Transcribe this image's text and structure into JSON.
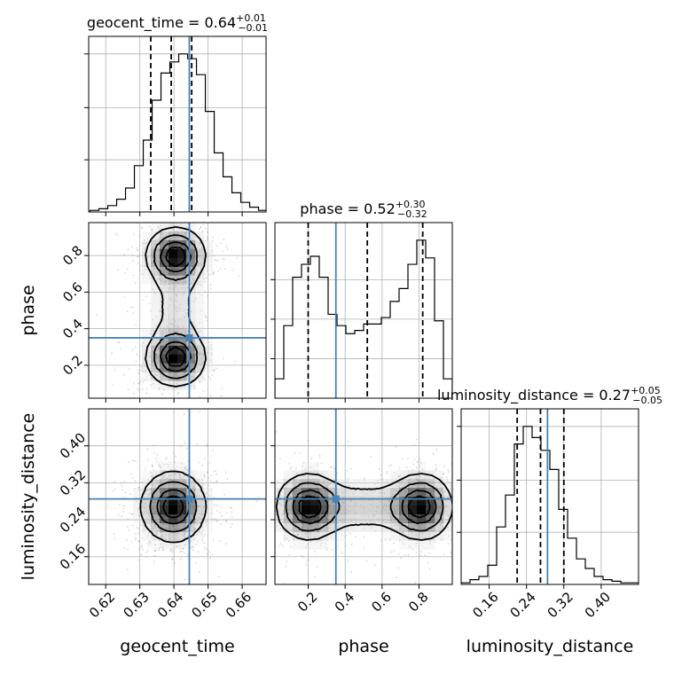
{
  "chart_data": {
    "type": "corner",
    "parameters": [
      "geocent_time",
      "phase",
      "luminosity_distance"
    ],
    "colors": {
      "truth": "#4682b4",
      "hist": "#000000",
      "density": "#000000"
    },
    "grid": true,
    "panels": [
      {
        "kind": "hist",
        "row": 0,
        "col": 0,
        "param": "geocent_time",
        "title": {
          "main": "geocent_time = 0.64",
          "sup": "+0.01",
          "sub": "−0.01"
        },
        "xlim": [
          0.615,
          0.667
        ],
        "yticks_frac": [
          0.33,
          0.66,
          1.0
        ],
        "bins": [
          0.6154,
          0.618,
          0.6206,
          0.6232,
          0.6258,
          0.6284,
          0.631,
          0.6336,
          0.6362,
          0.6388,
          0.6414,
          0.644,
          0.6466,
          0.6492,
          0.6518,
          0.6544,
          0.657,
          0.6596,
          0.6622,
          0.6648,
          0.6674
        ],
        "counts": [
          0.01,
          0.02,
          0.04,
          0.08,
          0.15,
          0.29,
          0.45,
          0.7,
          0.87,
          0.94,
          0.99,
          0.96,
          0.86,
          0.63,
          0.37,
          0.22,
          0.12,
          0.06,
          0.03,
          0.01
        ],
        "quantiles": [
          0.6332,
          0.6392,
          0.6452
        ],
        "truth": 0.6445
      },
      {
        "kind": "hist",
        "row": 1,
        "col": 1,
        "param": "phase",
        "title": {
          "main": "phase = 0.52",
          "sup": "+0.30",
          "sub": "−0.32"
        },
        "xlim": [
          0.02,
          0.98
        ],
        "yticks_frac": [
          0.25,
          0.5,
          0.75
        ],
        "bins": [
          0.02,
          0.068,
          0.116,
          0.164,
          0.212,
          0.26,
          0.308,
          0.356,
          0.404,
          0.452,
          0.5,
          0.548,
          0.596,
          0.644,
          0.692,
          0.74,
          0.788,
          0.836,
          0.884,
          0.932,
          0.98
        ],
        "counts": [
          0.12,
          0.45,
          0.75,
          0.83,
          0.88,
          0.75,
          0.52,
          0.45,
          0.4,
          0.42,
          0.46,
          0.46,
          0.5,
          0.6,
          0.68,
          0.83,
          0.98,
          0.87,
          0.48,
          0.12
        ],
        "quantiles": [
          0.2,
          0.52,
          0.82
        ],
        "truth": 0.35
      },
      {
        "kind": "hist",
        "row": 2,
        "col": 2,
        "param": "luminosity_distance",
        "title": {
          "main": "luminosity_distance = 0.27",
          "sup": "+0.05",
          "sub": "−0.05"
        },
        "xlim": [
          0.1,
          0.48
        ],
        "yticks_frac": [
          0.33,
          0.66,
          1.0
        ],
        "bins": [
          0.1,
          0.119,
          0.138,
          0.157,
          0.176,
          0.195,
          0.214,
          0.233,
          0.252,
          0.271,
          0.29,
          0.309,
          0.328,
          0.347,
          0.366,
          0.385,
          0.404,
          0.423,
          0.442,
          0.461,
          0.48
        ],
        "counts": [
          0.01,
          0.03,
          0.05,
          0.12,
          0.36,
          0.56,
          0.88,
          0.99,
          0.92,
          0.84,
          0.72,
          0.47,
          0.29,
          0.16,
          0.1,
          0.05,
          0.03,
          0.02,
          0.01,
          0.01
        ],
        "quantiles": [
          0.22,
          0.27,
          0.32
        ],
        "truth": 0.285
      },
      {
        "kind": "2d",
        "row": 1,
        "col": 0,
        "x": "geocent_time",
        "y": "phase",
        "xlim": [
          0.615,
          0.667
        ],
        "ylim": [
          0.02,
          0.98
        ],
        "modes": [
          {
            "cx": 0.6405,
            "cy": 0.24,
            "sx": 0.0048,
            "sy": 0.085,
            "w": 1.0
          },
          {
            "cx": 0.6405,
            "cy": 0.8,
            "sx": 0.0048,
            "sy": 0.085,
            "w": 1.0
          },
          {
            "cx": 0.6405,
            "cy": 0.52,
            "sx": 0.0055,
            "sy": 0.16,
            "w": 0.25
          }
        ],
        "truth": [
          0.6445,
          0.35
        ]
      },
      {
        "kind": "2d",
        "row": 2,
        "col": 0,
        "x": "geocent_time",
        "y": "luminosity_distance",
        "xlim": [
          0.615,
          0.667
        ],
        "ylim": [
          0.1,
          0.48
        ],
        "modes": [
          {
            "cx": 0.6398,
            "cy": 0.268,
            "sx": 0.0052,
            "sy": 0.042,
            "w": 1.0
          }
        ],
        "truth": [
          0.6445,
          0.285
        ]
      },
      {
        "kind": "2d",
        "row": 2,
        "col": 1,
        "x": "phase",
        "y": "luminosity_distance",
        "xlim": [
          0.02,
          0.98
        ],
        "ylim": [
          0.1,
          0.48
        ],
        "modes": [
          {
            "cx": 0.2,
            "cy": 0.268,
            "sx": 0.095,
            "sy": 0.04,
            "w": 1.0
          },
          {
            "cx": 0.81,
            "cy": 0.268,
            "sx": 0.095,
            "sy": 0.04,
            "w": 1.0
          },
          {
            "cx": 0.5,
            "cy": 0.268,
            "sx": 0.17,
            "sy": 0.036,
            "w": 0.35
          }
        ],
        "truth": [
          0.35,
          0.285
        ]
      }
    ],
    "ticks": {
      "geocent_time": [
        "0.62",
        "0.63",
        "0.64",
        "0.65",
        "0.66"
      ],
      "phase": [
        "0.2",
        "0.4",
        "0.6",
        "0.8"
      ],
      "luminosity_distance": [
        "0.16",
        "0.24",
        "0.32",
        "0.40"
      ]
    },
    "axis_labels": {
      "x": [
        "geocent_time",
        "phase",
        "luminosity_distance"
      ],
      "y": [
        "phase",
        "luminosity_distance"
      ]
    }
  }
}
